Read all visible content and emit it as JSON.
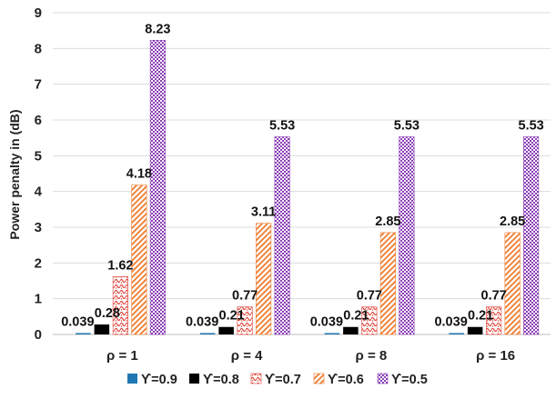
{
  "chart_data": {
    "type": "bar",
    "title": "",
    "xlabel": "",
    "ylabel": "Power penalty in (dB)",
    "ylim": [
      0,
      9
    ],
    "yticks": [
      0,
      1,
      2,
      3,
      4,
      5,
      6,
      7,
      8,
      9
    ],
    "grid": true,
    "legend_position": "bottom",
    "categories": [
      "ρ = 1",
      "ρ = 4",
      "ρ = 8",
      "ρ = 16"
    ],
    "series": [
      {
        "name": "ϒ=0.9",
        "values": [
          0.039,
          0.039,
          0.039,
          0.039
        ],
        "labels": [
          "0.039",
          "0.039",
          "0.039",
          "0.039"
        ],
        "color": "#1f77b4",
        "pattern": "solid"
      },
      {
        "name": "ϒ=0.8",
        "values": [
          0.28,
          0.21,
          0.21,
          0.21
        ],
        "labels": [
          "0.28",
          "0.21",
          "0.21",
          "0.21"
        ],
        "color": "#000000",
        "pattern": "solid"
      },
      {
        "name": "ϒ=0.7",
        "values": [
          1.62,
          0.77,
          0.77,
          0.77
        ],
        "labels": [
          "1.62",
          "0.77",
          "0.77",
          "0.77"
        ],
        "color": "#e0463c",
        "pattern": "squiggle"
      },
      {
        "name": "ϒ=0.6",
        "values": [
          4.18,
          3.11,
          2.85,
          2.85
        ],
        "labels": [
          "4.18",
          "3.11",
          "2.85",
          "2.85"
        ],
        "color": "#ee7c2e",
        "pattern": "diagonal"
      },
      {
        "name": "ϒ=0.5",
        "values": [
          8.23,
          5.53,
          5.53,
          5.53
        ],
        "labels": [
          "8.23",
          "5.53",
          "5.53",
          "5.53"
        ],
        "color": "#8a3fb6",
        "pattern": "checker"
      }
    ]
  }
}
